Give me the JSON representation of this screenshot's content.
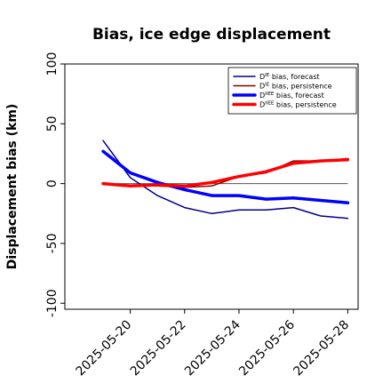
{
  "chart_data": {
    "type": "line",
    "title": "Bias, ice edge displacement",
    "xlabel": "",
    "ylabel": "Displacement bias (km)",
    "ylim": [
      -105,
      100
    ],
    "yticks": [
      100,
      50,
      0,
      -50,
      -100
    ],
    "x": [
      "2025-05-19",
      "2025-05-20",
      "2025-05-21",
      "2025-05-22",
      "2025-05-23",
      "2025-05-24",
      "2025-05-25",
      "2025-05-26",
      "2025-05-27",
      "2025-05-28"
    ],
    "xticks": [
      "2025-05-20",
      "2025-05-22",
      "2025-05-24",
      "2025-05-26",
      "2025-05-28"
    ],
    "highlighted_tick": "2025-05-20",
    "reference_line": 0,
    "grid": false,
    "legend_position": "top-right",
    "series": [
      {
        "name": "D^IE bias, forecast",
        "color": "#00008b",
        "width": 1.5,
        "values": [
          36,
          5,
          -10,
          -20,
          -25,
          -22,
          -22,
          -20,
          -27,
          -29
        ]
      },
      {
        "name": "D^IE bias, persistence",
        "color": "#8b0000",
        "width": 1.5,
        "values": [
          0,
          -2,
          -2,
          -3,
          -2,
          6,
          9,
          19,
          19,
          21
        ]
      },
      {
        "name": "D^IIEE bias, forecast",
        "color": "#0000ff",
        "width": 3.5,
        "values": [
          27,
          9,
          1,
          -5,
          -10,
          -10,
          -13,
          -12,
          -14,
          -16
        ]
      },
      {
        "name": "D^IIEE bias, persistence",
        "color": "#ff0000",
        "width": 3.5,
        "values": [
          0,
          -2,
          -1,
          -2,
          1,
          6,
          10,
          17,
          19,
          20
        ]
      }
    ],
    "colors": {
      "axis": "#000000",
      "reference": "#555555",
      "highlight_tick": "#228b22"
    }
  }
}
